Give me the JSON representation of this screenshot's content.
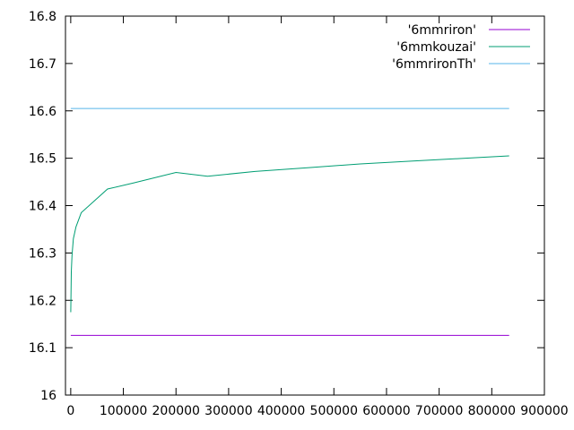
{
  "chart_data": {
    "type": "line",
    "title": "",
    "xlabel": "",
    "ylabel": "",
    "xlim": [
      -10000,
      900000
    ],
    "ylim": [
      16.0,
      16.8
    ],
    "x_ticks": [
      0,
      100000,
      200000,
      300000,
      400000,
      500000,
      600000,
      700000,
      800000,
      900000
    ],
    "x_tick_labels": [
      "0",
      "100000",
      "200000",
      "300000",
      "400000",
      "500000",
      "600000",
      "700000",
      "800000",
      "900000"
    ],
    "y_ticks": [
      16.0,
      16.1,
      16.2,
      16.3,
      16.4,
      16.5,
      16.6,
      16.7,
      16.8
    ],
    "y_tick_labels": [
      "16",
      "16.1",
      "16.2",
      "16.3",
      "16.4",
      "16.5",
      "16.6",
      "16.7",
      "16.8"
    ],
    "grid": false,
    "legend_position": "top-right",
    "series": [
      {
        "name": "'6mmriron'",
        "color": "#9400d3",
        "x": [
          0,
          833000
        ],
        "y": [
          16.126,
          16.126
        ]
      },
      {
        "name": "'6mmkouzai'",
        "color": "#009e73",
        "x": [
          0,
          1000,
          2500,
          5000,
          10000,
          20000,
          70000,
          120000,
          200000,
          260000,
          350000,
          450000,
          550000,
          650000,
          750000,
          833000
        ],
        "y": [
          16.175,
          16.26,
          16.295,
          16.33,
          16.355,
          16.385,
          16.435,
          16.448,
          16.47,
          16.462,
          16.472,
          16.48,
          16.488,
          16.494,
          16.5,
          16.505
        ]
      },
      {
        "name": "'6mmrironTh'",
        "color": "#56b4e9",
        "x": [
          0,
          833000
        ],
        "y": [
          16.605,
          16.605
        ]
      }
    ]
  }
}
